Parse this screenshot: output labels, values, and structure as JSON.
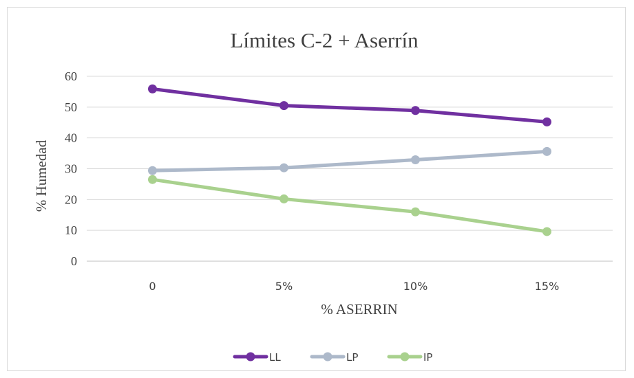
{
  "chart_data": {
    "type": "line",
    "title": "Límites C-2 + Aserrín",
    "xlabel": "% ASERRIN",
    "ylabel": "% Humedad",
    "categories": [
      "0",
      "5%",
      "10%",
      "15%"
    ],
    "ylim": [
      0,
      60
    ],
    "yticks": [
      0,
      10,
      20,
      30,
      40,
      50,
      60
    ],
    "grid": "horizontal",
    "legend_position": "bottom",
    "series": [
      {
        "name": "LL",
        "color": "#7030a0",
        "values": [
          55.9,
          50.5,
          48.9,
          45.2
        ]
      },
      {
        "name": "LP",
        "color": "#adb9ca",
        "values": [
          29.4,
          30.3,
          32.9,
          35.6
        ]
      },
      {
        "name": "IP",
        "color": "#a9d18e",
        "values": [
          26.5,
          20.2,
          16.0,
          9.6
        ]
      }
    ]
  }
}
